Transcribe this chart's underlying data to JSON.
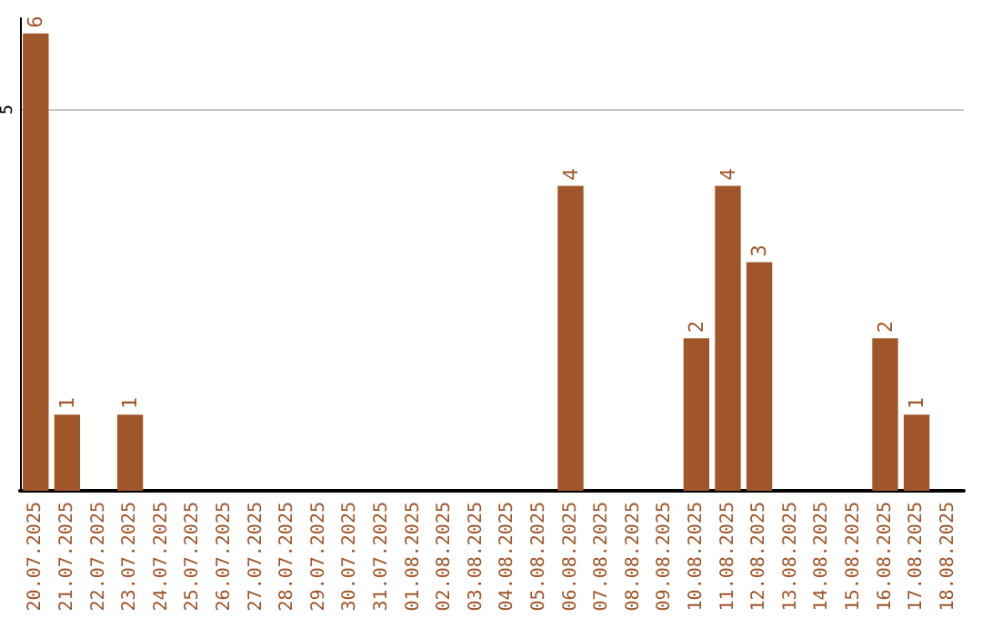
{
  "chart_data": {
    "type": "bar",
    "categories": [
      "20.07.2025",
      "21.07.2025",
      "22.07.2025",
      "23.07.2025",
      "24.07.2025",
      "25.07.2025",
      "26.07.2025",
      "27.07.2025",
      "28.07.2025",
      "29.07.2025",
      "30.07.2025",
      "31.07.2025",
      "01.08.2025",
      "02.08.2025",
      "03.08.2025",
      "04.08.2025",
      "05.08.2025",
      "06.08.2025",
      "07.08.2025",
      "08.08.2025",
      "09.08.2025",
      "10.08.2025",
      "11.08.2025",
      "12.08.2025",
      "13.08.2025",
      "14.08.2025",
      "15.08.2025",
      "16.08.2025",
      "17.08.2025",
      "18.08.2025"
    ],
    "values": [
      6,
      1,
      0,
      1,
      0,
      0,
      0,
      0,
      0,
      0,
      0,
      0,
      0,
      0,
      0,
      0,
      0,
      4,
      0,
      0,
      0,
      2,
      4,
      3,
      0,
      0,
      0,
      2,
      1,
      0
    ],
    "value_labels": [
      "6",
      "1",
      null,
      "1",
      null,
      null,
      null,
      null,
      null,
      null,
      null,
      null,
      null,
      null,
      null,
      null,
      null,
      "4",
      null,
      null,
      null,
      "2",
      "4",
      "3",
      null,
      null,
      null,
      "2",
      "1",
      null
    ],
    "color": "#a0562a",
    "ylim": [
      0,
      6.2
    ],
    "yticks": [
      5
    ],
    "grid": "y"
  }
}
